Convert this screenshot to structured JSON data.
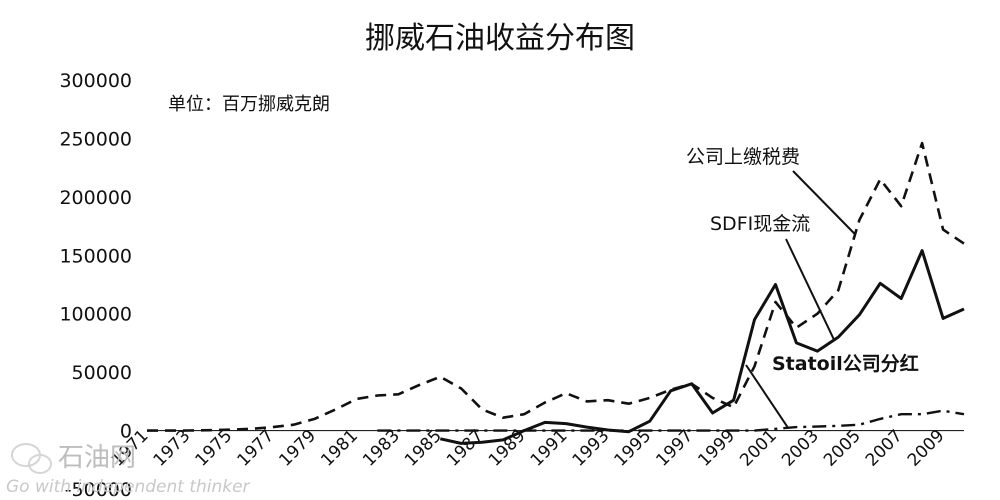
{
  "chart_data": {
    "type": "line",
    "title": "挪威石油收益分布图",
    "unit_note": "单位：百万挪威克朗",
    "ylim": [
      -50000,
      300000
    ],
    "yticks": [
      -50000,
      0,
      50000,
      100000,
      150000,
      200000,
      250000,
      300000
    ],
    "xlim": [
      1971,
      2010
    ],
    "xticks": [
      1971,
      1973,
      1975,
      1977,
      1979,
      1981,
      1983,
      1985,
      1987,
      1989,
      1991,
      1993,
      1995,
      1997,
      1999,
      2001,
      2003,
      2005,
      2007,
      2009
    ],
    "grid": false,
    "legend": "none",
    "series": [
      {
        "name": "公司上缴税费",
        "style": "dashed",
        "x": [
          1971,
          1972,
          1973,
          1974,
          1975,
          1976,
          1977,
          1978,
          1979,
          1980,
          1981,
          1982,
          1983,
          1984,
          1985,
          1986,
          1987,
          1988,
          1989,
          1990,
          1991,
          1992,
          1993,
          1994,
          1995,
          1996,
          1997,
          1998,
          1999,
          2000,
          2001,
          2002,
          2003,
          2004,
          2005,
          2006,
          2007,
          2008,
          2009,
          2010
        ],
        "values": [
          0,
          0,
          100,
          300,
          800,
          1500,
          3000,
          5000,
          10000,
          18000,
          27000,
          30000,
          31000,
          39000,
          46000,
          36000,
          18000,
          11000,
          14000,
          24000,
          32000,
          25000,
          26000,
          23000,
          28000,
          35000,
          40000,
          28000,
          20000,
          55000,
          110000,
          88000,
          100000,
          120000,
          180000,
          215000,
          192000,
          246000,
          172000,
          160000
        ]
      },
      {
        "name": "SDFI现金流",
        "style": "solid",
        "x": [
          1985,
          1986,
          1987,
          1988,
          1989,
          1990,
          1991,
          1992,
          1993,
          1994,
          1995,
          1996,
          1997,
          1998,
          1999,
          2000,
          2001,
          2002,
          2003,
          2004,
          2005,
          2006,
          2007,
          2008,
          2009,
          2010
        ],
        "values": [
          -7000,
          -11000,
          -10000,
          -8000,
          0,
          7000,
          6000,
          3000,
          500,
          -1000,
          8000,
          34000,
          40000,
          15000,
          26000,
          95000,
          125000,
          75000,
          68000,
          80000,
          99000,
          126000,
          113000,
          154000,
          96000,
          104000
        ]
      },
      {
        "name": "Statoil公司分红",
        "style": "dashdot",
        "x": [
          1982,
          1984,
          1986,
          1988,
          1990,
          1992,
          1994,
          1996,
          1998,
          2000,
          2002,
          2004,
          2005,
          2006,
          2007,
          2008,
          2009,
          2010
        ],
        "values": [
          0,
          0,
          0,
          0,
          0,
          0,
          0,
          0,
          0,
          0,
          3000,
          4000,
          5000,
          10000,
          14000,
          14000,
          17000,
          14000
        ]
      }
    ],
    "annotations": [
      {
        "text": "公司上缴税费",
        "series": 0
      },
      {
        "text": "SDFI现金流",
        "series": 1
      },
      {
        "text": "Statoil公司分红",
        "series": 2
      }
    ]
  },
  "watermark": {
    "text": "石油网",
    "subtext": "Go with independent thinker"
  }
}
